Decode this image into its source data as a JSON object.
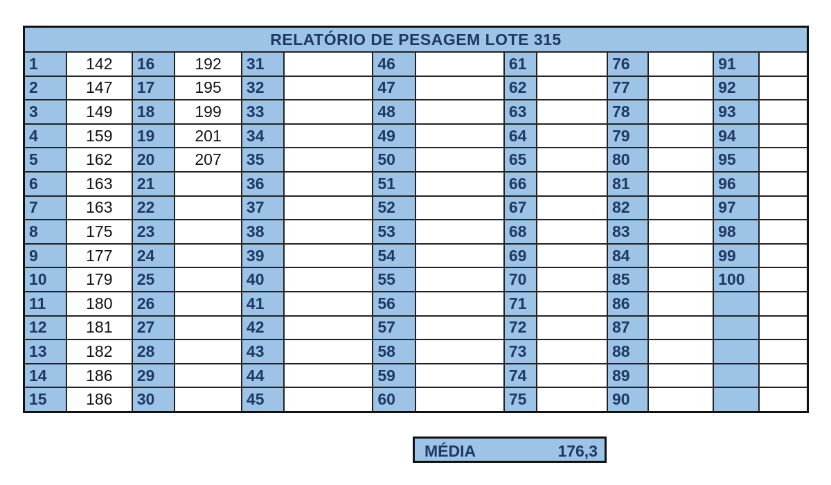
{
  "title": "RELATÓRIO DE PESAGEM LOTE 315",
  "weights": {
    "1": "142",
    "2": "147",
    "3": "149",
    "4": "159",
    "5": "162",
    "6": "163",
    "7": "163",
    "8": "175",
    "9": "177",
    "10": "179",
    "11": "180",
    "12": "181",
    "13": "182",
    "14": "186",
    "15": "186",
    "16": "192",
    "17": "195",
    "18": "199",
    "19": "201",
    "20": "207"
  },
  "total_slots": 100,
  "rows_per_column": 15,
  "average": {
    "label": "MÉDIA",
    "value": "176,3"
  },
  "colors": {
    "header_fill": "#9dc3e6",
    "header_text": "#1f3864",
    "border": "#111111"
  }
}
